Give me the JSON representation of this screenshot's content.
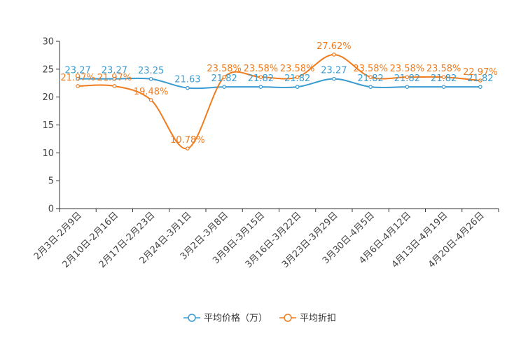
{
  "chart_data": {
    "type": "line",
    "title": "",
    "xlabel": "",
    "ylabel": "",
    "ylim": [
      0,
      30
    ],
    "yticks": [
      0,
      5,
      10,
      15,
      20,
      25,
      30
    ],
    "grid": false,
    "legend_position": "bottom-center",
    "categories": [
      "2月3日-2月9日",
      "2月10日-2月16日",
      "2月17日-2月23日",
      "2月24日-3月1日",
      "3月2日-3月8日",
      "3月9日-3月15日",
      "3月16日-3月22日",
      "3月23日-3月29日",
      "3月30日-4月5日",
      "4月6日-4月12日",
      "4月13日-4月19日",
      "4月20日-4月26日"
    ],
    "series": [
      {
        "name": "平均价格（万）",
        "color": "#3a9bd0",
        "values": [
          23.27,
          23.27,
          23.25,
          21.63,
          21.82,
          21.82,
          21.82,
          23.27,
          21.82,
          21.82,
          21.82,
          21.82
        ],
        "labels": [
          "23.27",
          "23.27",
          "23.25",
          "21.63",
          "21.82",
          "21.82",
          "21.82",
          "23.27",
          "21.82",
          "21.82",
          "21.82",
          "21.82"
        ]
      },
      {
        "name": "平均折扣",
        "color": "#f07c1e",
        "values": [
          21.97,
          21.97,
          19.48,
          10.78,
          23.58,
          23.58,
          23.58,
          27.62,
          23.58,
          23.58,
          23.58,
          22.97
        ],
        "labels": [
          "21.97%",
          "21.97%",
          "19.48%",
          "10.78%",
          "23.58%",
          "23.58%",
          "23.58%",
          "27.62%",
          "23.58%",
          "23.58%",
          "23.58%",
          "22.97%"
        ]
      }
    ]
  }
}
